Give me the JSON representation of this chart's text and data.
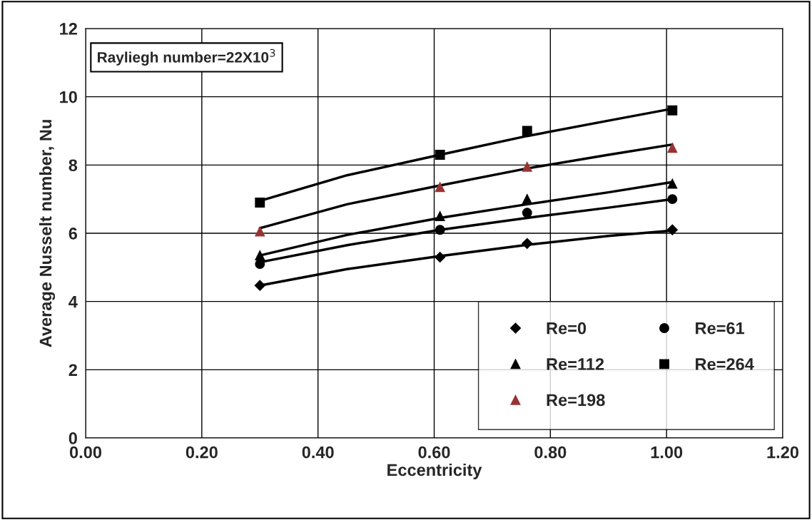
{
  "chart_data": {
    "type": "scatter",
    "xlabel": "Eccentricity",
    "ylabel": "Average Nusselt number, Nu",
    "annotations": [
      "Rayliegh number=22X10$^{3}$"
    ],
    "x": [
      0.3,
      0.61,
      0.76,
      1.01
    ],
    "xlim": [
      0,
      1.2
    ],
    "xticks": [
      {
        "value": 0,
        "label": "0.00"
      },
      {
        "value": 0.2,
        "label": "0.20"
      },
      {
        "value": 0.4,
        "label": "0.40"
      },
      {
        "value": 0.6,
        "label": "0.60"
      },
      {
        "value": 0.8,
        "label": "0.80"
      },
      {
        "value": 1.0,
        "label": "1.00"
      },
      {
        "value": 1.2,
        "label": "1.20"
      }
    ],
    "ylim": [
      0,
      12
    ],
    "yticks": [
      0,
      2,
      4,
      6,
      8,
      10,
      12
    ],
    "grid": true,
    "legend": "bottom right",
    "series": [
      {
        "name": "Re=0",
        "color": "#000000",
        "marker": "diamond",
        "values": [
          4.47,
          5.3,
          5.7,
          6.1
        ]
      },
      {
        "name": "Re=61",
        "color": "#000000",
        "marker": "circle",
        "values": [
          5.1,
          6.1,
          6.6,
          7.0
        ]
      },
      {
        "name": "Re=112",
        "color": "#000000",
        "marker": "triangle",
        "values": [
          5.35,
          6.5,
          7.0,
          7.45
        ]
      },
      {
        "name": "Re=264",
        "color": "#000000",
        "marker": "square",
        "values": [
          6.9,
          8.3,
          9.0,
          9.6
        ]
      },
      {
        "name": "Re=198",
        "color": "#993333",
        "marker": "triangle",
        "values": [
          6.05,
          7.35,
          7.95,
          8.5
        ]
      },
      {
        "type": "line",
        "color": "#000000",
        "marker": "none",
        "x": [
          0.3,
          0.45,
          0.61,
          0.76,
          0.9,
          1.01
        ],
        "values": [
          4.47,
          4.95,
          5.33,
          5.66,
          5.92,
          6.08
        ]
      },
      {
        "type": "line",
        "color": "#000000",
        "marker": "none",
        "x": [
          0.3,
          0.45,
          0.61,
          0.76,
          0.9,
          1.01
        ],
        "values": [
          5.15,
          5.65,
          6.1,
          6.45,
          6.75,
          7.0
        ]
      },
      {
        "type": "line",
        "color": "#000000",
        "marker": "none",
        "x": [
          0.3,
          0.45,
          0.61,
          0.76,
          0.9,
          1.01
        ],
        "values": [
          5.35,
          5.95,
          6.45,
          6.85,
          7.2,
          7.5
        ]
      },
      {
        "type": "line",
        "color": "#000000",
        "marker": "none",
        "x": [
          0.3,
          0.45,
          0.61,
          0.76,
          0.9,
          1.01
        ],
        "values": [
          6.95,
          7.7,
          8.3,
          8.85,
          9.3,
          9.65
        ]
      },
      {
        "type": "line",
        "color": "#000000",
        "marker": "none",
        "x": [
          0.3,
          0.45,
          0.61,
          0.76,
          0.9,
          1.01
        ],
        "values": [
          6.15,
          6.85,
          7.4,
          7.9,
          8.3,
          8.6
        ]
      }
    ]
  }
}
